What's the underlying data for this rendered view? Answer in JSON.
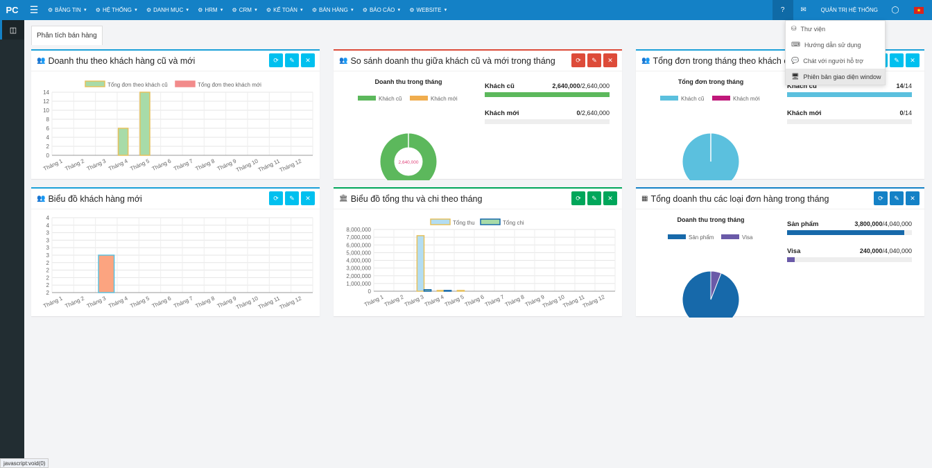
{
  "topbar": {
    "logo": "PC",
    "menu": [
      {
        "label": "BẢNG TIN",
        "icon": "dashboard-icon"
      },
      {
        "label": "HỆ THỐNG",
        "icon": "cogs-icon"
      },
      {
        "label": "DANH MỤC",
        "icon": "sitemap-icon"
      },
      {
        "label": "HRM",
        "icon": "cogs-icon"
      },
      {
        "label": "CRM",
        "icon": "list-icon"
      },
      {
        "label": "KẾ TOÁN",
        "icon": "gear-icon"
      },
      {
        "label": "BÁN HÀNG",
        "icon": "book-icon"
      },
      {
        "label": "BÁO CÁO",
        "icon": "bar-chart-icon"
      },
      {
        "label": "WEBSITE",
        "icon": "chat-icon"
      }
    ],
    "user": "QUẢN TRỊ HỆ THỐNG"
  },
  "dropdown": [
    {
      "label": "Thư viện",
      "icon": "library-icon"
    },
    {
      "label": "Hướng dẫn sử dụng",
      "icon": "keyboard-icon"
    },
    {
      "label": "Chát với người hỗ trợ",
      "icon": "comment-icon"
    },
    {
      "label": "Phiên bản giao diện window",
      "icon": "monitor-icon"
    }
  ],
  "tab": "Phân tích bán hàng",
  "panels": {
    "p1": {
      "title": "Doanh thu theo khách hàng cũ và mới"
    },
    "p2": {
      "title": "So sánh doanh thu giữa khách cũ và mới trong tháng"
    },
    "p3": {
      "title": "Tổng đơn trong tháng theo khách cũ"
    },
    "p4": {
      "title": "Biểu đồ khách hàng mới"
    },
    "p5": {
      "title": "Biểu đồ tổng thu và chi theo tháng"
    },
    "p6": {
      "title": "Tổng doanh thu các loại đơn hàng trong tháng"
    }
  },
  "kpi2": {
    "heading": "Doanh thu trong tháng",
    "rows": [
      {
        "label": "Khách cũ",
        "value": "2,640,000",
        "total": "/2,640,000",
        "fraction": 1.0,
        "color": "#5cb85c"
      },
      {
        "label": "Khách mới",
        "value": "0",
        "total": "/2,640,000",
        "fraction": 0.0,
        "color": "#f0ad4e"
      }
    ]
  },
  "kpi3": {
    "heading": "Tổng đơn trong tháng",
    "rows": [
      {
        "label": "Khách cũ",
        "value": "14",
        "total": "/14",
        "fraction": 1.0,
        "color": "#5bc0de"
      },
      {
        "label": "Khách mới",
        "value": "0",
        "total": "/14",
        "fraction": 0.0,
        "color": "#c0187a"
      }
    ]
  },
  "kpi6": {
    "heading": "Doanh thu trong tháng",
    "rows": [
      {
        "label": "Sản phẩm",
        "value": "3,800,000",
        "total": "/4,040,000",
        "fraction": 0.94,
        "color": "#1769aa"
      },
      {
        "label": "Visa",
        "value": "240,000",
        "total": "/4,040,000",
        "fraction": 0.06,
        "color": "#6a5aa8"
      }
    ]
  },
  "statusbar": "javascript:void(0)",
  "chart_data": [
    {
      "type": "bar",
      "id": "c1",
      "categories": [
        "Tháng 1",
        "Tháng 2",
        "Tháng 3",
        "Tháng 4",
        "Tháng 5",
        "Tháng 6",
        "Tháng 7",
        "Tháng 8",
        "Tháng 9",
        "Tháng 10",
        "Tháng 11",
        "Tháng 12"
      ],
      "series": [
        {
          "name": "Tổng đơn theo khách cũ",
          "values": [
            0,
            0,
            0,
            6,
            14,
            0,
            0,
            0,
            0,
            0,
            0,
            0
          ],
          "color": "#a8dba8",
          "stroke": "#e6c15c"
        },
        {
          "name": "Tổng đơn theo khách mới",
          "values": [
            0,
            0,
            0,
            0,
            0,
            0,
            0,
            0,
            0,
            0,
            0,
            0
          ],
          "color": "#f28b8b",
          "stroke": "#f28b8b"
        }
      ],
      "ylim": [
        0,
        14
      ],
      "yticks": [
        "14",
        "12",
        "10",
        "8",
        "6",
        "4",
        "2",
        "0"
      ],
      "legend": "top"
    },
    {
      "type": "pie",
      "id": "c2",
      "style": "donut",
      "labels": [
        "Khách cũ",
        "Khách mới"
      ],
      "values": [
        2640000,
        0
      ],
      "colors": [
        "#5cb85c",
        "#f0ad4e"
      ],
      "center_label": "2,640,000",
      "legend": "top"
    },
    {
      "type": "pie",
      "id": "c3",
      "labels": [
        "Khách cũ",
        "Khách mới"
      ],
      "values": [
        14,
        0
      ],
      "colors": [
        "#5bc0de",
        "#c0187a"
      ],
      "legend": "top"
    },
    {
      "type": "bar",
      "id": "c4",
      "categories": [
        "Tháng 1",
        "Tháng 2",
        "Tháng 3",
        "Tháng 4",
        "Tháng 5",
        "Tháng 6",
        "Tháng 7",
        "Tháng 8",
        "Tháng 9",
        "Tháng 10",
        "Tháng 11",
        "Tháng 12"
      ],
      "series": [
        {
          "values": [
            0,
            0,
            3,
            0,
            0,
            0,
            0,
            0,
            0,
            0,
            0,
            0
          ],
          "color": "#fca480",
          "stroke": "#5bc0de"
        }
      ],
      "ylim": [
        2,
        4
      ],
      "yticks": [
        "4",
        "4",
        "3",
        "3",
        "3",
        "3",
        "2",
        "2",
        "2",
        "2",
        "2"
      ]
    },
    {
      "type": "bar",
      "id": "c5",
      "categories": [
        "Tháng 1",
        "Tháng 2",
        "Tháng 3",
        "Tháng 4",
        "Tháng 5",
        "Tháng 6",
        "Tháng 7",
        "Tháng 8",
        "Tháng 9",
        "Tháng 10",
        "Tháng 11",
        "Tháng 12"
      ],
      "series": [
        {
          "name": "Tổng thu",
          "values": [
            0,
            0,
            7200000,
            100000,
            100000,
            0,
            0,
            0,
            0,
            0,
            0,
            0
          ],
          "color": "#b3ddf2",
          "stroke": "#e6c15c"
        },
        {
          "name": "Tổng chi",
          "values": [
            0,
            0,
            200000,
            100000,
            0,
            0,
            0,
            0,
            0,
            0,
            0,
            0
          ],
          "color": "#a8dba8",
          "stroke": "#1769aa"
        }
      ],
      "ylim": [
        0,
        8000000
      ],
      "yticks": [
        "8,000,000",
        "7,000,000",
        "6,000,000",
        "5,000,000",
        "4,000,000",
        "3,000,000",
        "2,000,000",
        "1,000,000",
        "0"
      ],
      "legend": "top"
    },
    {
      "type": "pie",
      "id": "c6",
      "labels": [
        "Sản phẩm",
        "Visa"
      ],
      "values": [
        3800000,
        240000
      ],
      "colors": [
        "#1769aa",
        "#6a5aa8"
      ],
      "legend": "top"
    }
  ]
}
